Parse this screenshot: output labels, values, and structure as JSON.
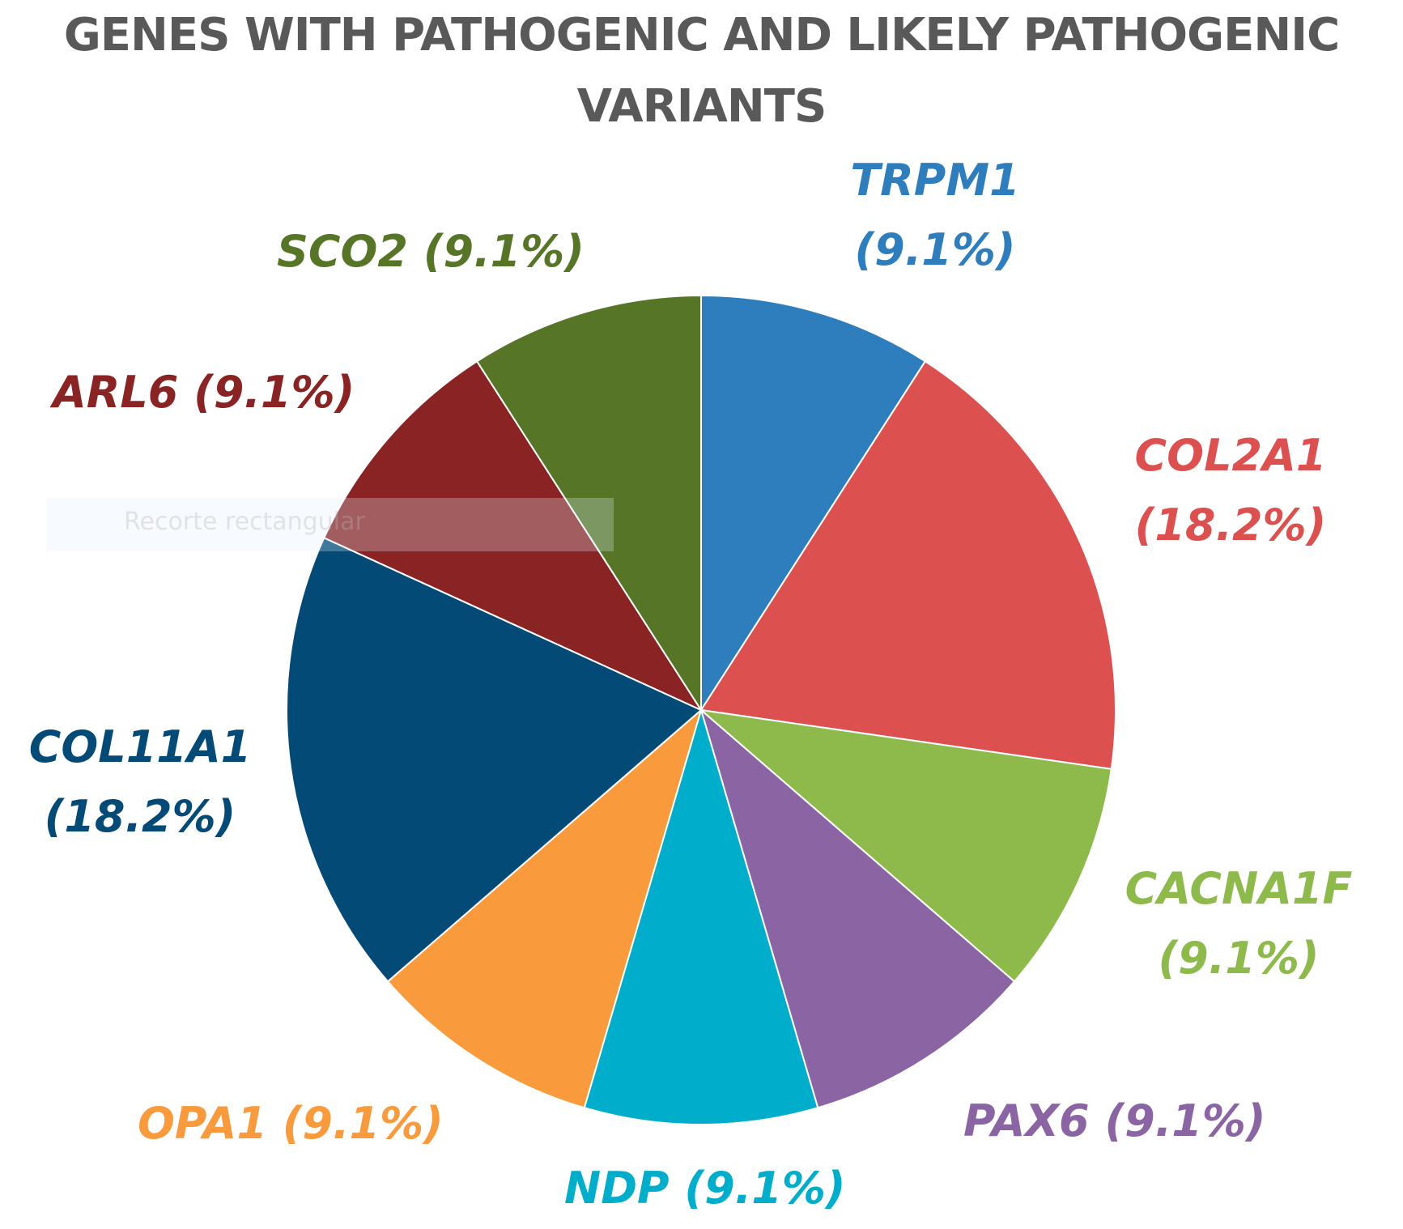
{
  "chart_data": {
    "type": "pie",
    "title": "GENES WITH PATHOGENIC AND LIKELY PATHOGENIC VARIANTS",
    "title_lines": [
      "GENES WITH PATHOGENIC AND LIKELY PATHOGENIC",
      "VARIANTS"
    ],
    "slices": [
      {
        "gene": "TRPM1",
        "percent_label": "(9.1%)",
        "value": 9.1,
        "color": "#2E7EBE"
      },
      {
        "gene": "COL2A1",
        "percent_label": "(18.2%)",
        "value": 18.2,
        "color": "#DC5150"
      },
      {
        "gene": "CACNA1F",
        "percent_label": "(9.1%)",
        "value": 9.1,
        "color": "#8EBA4C"
      },
      {
        "gene": "PAX6",
        "percent_label": "(9.1%)",
        "value": 9.1,
        "color": "#8B64A4"
      },
      {
        "gene": "NDP",
        "percent_label": "(9.1%)",
        "value": 9.1,
        "color": "#00AECB"
      },
      {
        "gene": "OPA1",
        "percent_label": "(9.1%)",
        "value": 9.1,
        "color": "#F99A3D"
      },
      {
        "gene": "COL11A1",
        "percent_label": "(18.2%)",
        "value": 18.2,
        "color": "#044A77"
      },
      {
        "gene": "ARL6",
        "percent_label": "(9.1%)",
        "value": 9.1,
        "color": "#8A2424"
      },
      {
        "gene": "SCO2",
        "percent_label": "(9.1%)",
        "value": 9.1,
        "color": "#577527"
      }
    ],
    "start": "12 o'clock",
    "direction": "clockwise"
  },
  "overlay": {
    "text": "Recorte rectangular"
  }
}
